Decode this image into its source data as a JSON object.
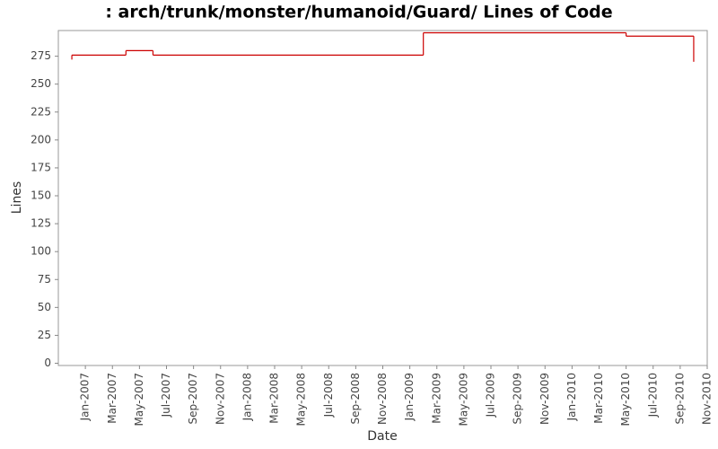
{
  "chart_data": {
    "type": "step",
    "title": ": arch/trunk/monster/humanoid/Guard/ Lines of Code",
    "x_label": "Date",
    "y_label": "Lines",
    "series": [
      {
        "name": "Lines",
        "color": "#cc0000",
        "x": [
          "2006-12",
          "2006-12",
          "2007-04",
          "2007-06",
          "2009-02",
          "2010-05",
          "2010-10"
        ],
        "values": [
          272,
          276,
          280,
          276,
          296,
          293,
          270
        ]
      }
    ],
    "xlim": [
      "2006-11",
      "2010-11"
    ],
    "xticks": [
      {
        "value": "2007-01",
        "label": "Jan-2007"
      },
      {
        "value": "2007-03",
        "label": "Mar-2007"
      },
      {
        "value": "2007-05",
        "label": "May-2007"
      },
      {
        "value": "2007-07",
        "label": "Jul-2007"
      },
      {
        "value": "2007-09",
        "label": "Sep-2007"
      },
      {
        "value": "2007-11",
        "label": "Nov-2007"
      },
      {
        "value": "2008-01",
        "label": "Jan-2008"
      },
      {
        "value": "2008-03",
        "label": "Mar-2008"
      },
      {
        "value": "2008-05",
        "label": "May-2008"
      },
      {
        "value": "2008-07",
        "label": "Jul-2008"
      },
      {
        "value": "2008-09",
        "label": "Sep-2008"
      },
      {
        "value": "2008-11",
        "label": "Nov-2008"
      },
      {
        "value": "2009-01",
        "label": "Jan-2009"
      },
      {
        "value": "2009-03",
        "label": "Mar-2009"
      },
      {
        "value": "2009-05",
        "label": "May-2009"
      },
      {
        "value": "2009-07",
        "label": "Jul-2009"
      },
      {
        "value": "2009-09",
        "label": "Sep-2009"
      },
      {
        "value": "2009-11",
        "label": "Nov-2009"
      },
      {
        "value": "2010-01",
        "label": "Jan-2010"
      },
      {
        "value": "2010-03",
        "label": "Mar-2010"
      },
      {
        "value": "2010-05",
        "label": "May-2010"
      },
      {
        "value": "2010-07",
        "label": "Jul-2010"
      },
      {
        "value": "2010-09",
        "label": "Sep-2010"
      },
      {
        "value": "2010-11",
        "label": "Nov-2010"
      }
    ],
    "ylim": [
      -2,
      298
    ],
    "yticks": [
      0,
      25,
      50,
      75,
      100,
      125,
      150,
      175,
      200,
      225,
      250,
      275
    ],
    "grid": false
  }
}
